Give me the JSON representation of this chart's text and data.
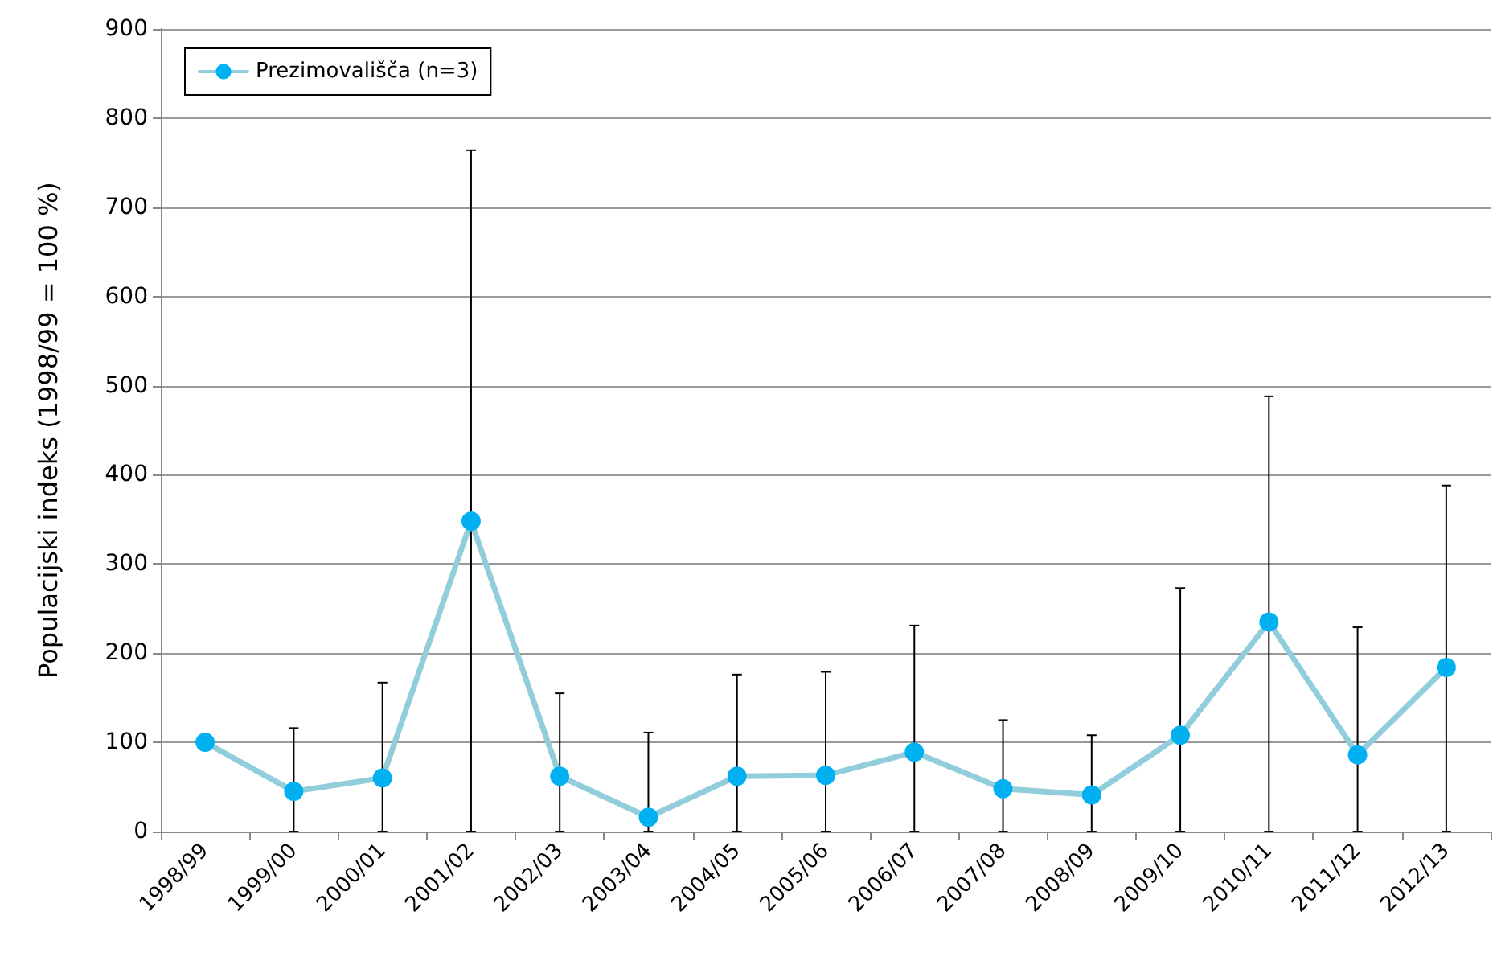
{
  "chart_data": {
    "type": "line",
    "ylabel": "Populacijski indeks (1998/99 = 100 %)",
    "categories": [
      "1998/99",
      "1999/00",
      "2000/01",
      "2001/02",
      "2002/03",
      "2003/04",
      "2004/05",
      "2005/06",
      "2006/07",
      "2007/08",
      "2008/09",
      "2009/10",
      "2010/11",
      "2011/12",
      "2012/13"
    ],
    "series": [
      {
        "name": "Prezimovališča (n=3)",
        "color": "#00b0f0",
        "values": [
          100,
          45,
          60,
          348,
          62,
          16,
          62,
          63,
          89,
          48,
          41,
          108,
          235,
          86,
          184
        ],
        "errors": [
          null,
          [
            0,
            116
          ],
          [
            0,
            167
          ],
          [
            0,
            764
          ],
          [
            0,
            155
          ],
          [
            0,
            111
          ],
          [
            0,
            176
          ],
          [
            0,
            179
          ],
          [
            0,
            231
          ],
          [
            0,
            125
          ],
          [
            0,
            108
          ],
          [
            0,
            273
          ],
          [
            0,
            488
          ],
          [
            0,
            229
          ],
          [
            0,
            388
          ]
        ]
      }
    ],
    "ylim": [
      0,
      900
    ],
    "yticks": [
      0,
      100,
      200,
      300,
      400,
      500,
      600,
      700,
      800,
      900
    ],
    "grid": "y",
    "legend": "top left",
    "marker": "circle",
    "line_style": "solid"
  }
}
